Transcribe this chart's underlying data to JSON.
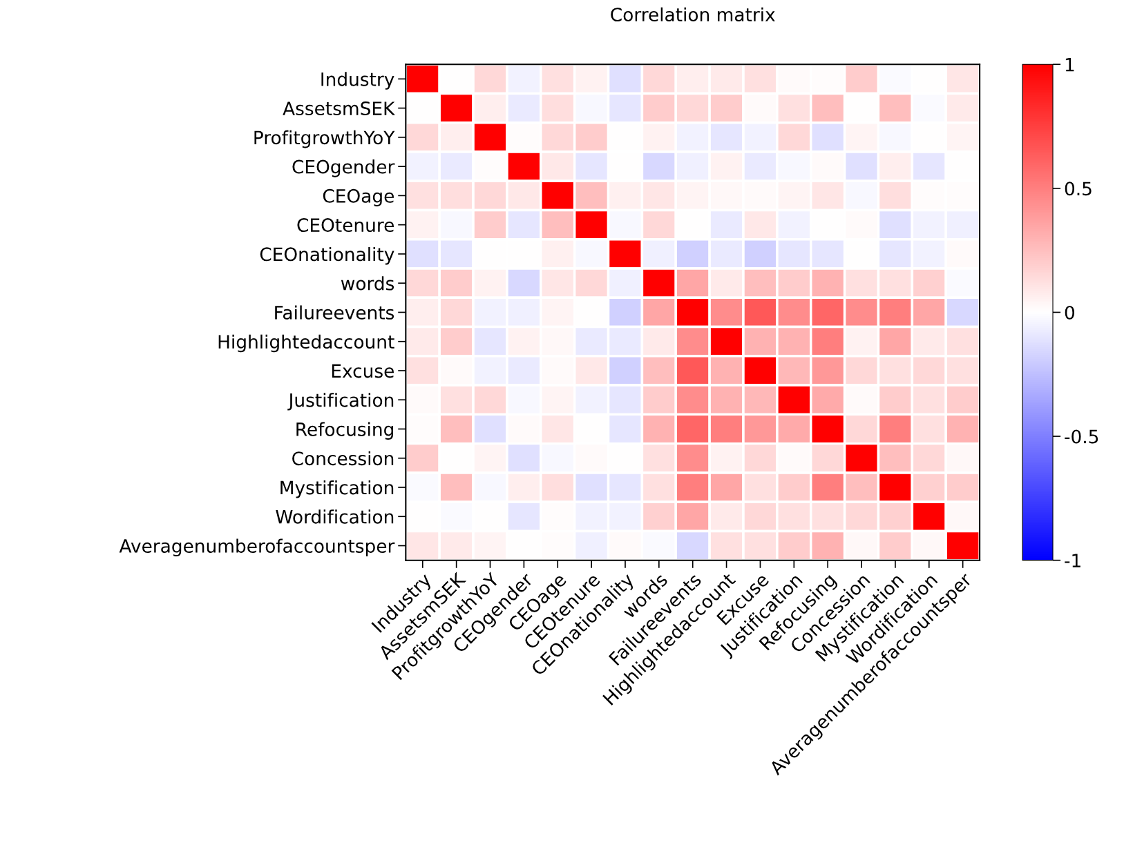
{
  "chart_data": {
    "type": "heatmap",
    "title": "Correlation matrix",
    "categories": [
      "Industry",
      "AssetsmSEK",
      "ProfitgrowthYoY",
      "CEOgender",
      "CEOage",
      "CEOtenure",
      "CEOnationality",
      "words",
      "Failureevents",
      "Highlightedaccount",
      "Excuse",
      "Justification",
      "Refocusing",
      "Concession",
      "Mystification",
      "Wordification",
      "Averagenumberofaccountsper"
    ],
    "y_categories": [
      "Industry",
      "AssetsmSEK",
      "ProfitgrowthYoY",
      "CEOgender",
      "CEOage",
      "CEOtenure",
      "CEOnationality",
      "words",
      "Failureevents",
      "Highlightedaccount",
      "Excuse",
      "Justification",
      "Refocusing",
      "Concession",
      "Mystification",
      "Wordification",
      "Averagenumberofaccountsper"
    ],
    "cells": [
      [
        1,
        0,
        0.15,
        -0.05,
        0.12,
        0.05,
        -0.12,
        0.15,
        0.07,
        0.08,
        0.12,
        0.02,
        0.01,
        0.2,
        -0.02,
        0,
        0.1
      ],
      [
        0,
        1,
        0.07,
        -0.08,
        0.13,
        -0.03,
        -0.1,
        0.2,
        0.15,
        0.2,
        0.02,
        0.12,
        0.25,
        0,
        0.25,
        -0.02,
        0.08
      ],
      [
        0.15,
        0.07,
        1,
        0.01,
        0.15,
        0.2,
        0,
        0.05,
        -0.05,
        -0.1,
        -0.05,
        0.15,
        -0.12,
        0.04,
        -0.03,
        0,
        0.04
      ],
      [
        -0.05,
        -0.08,
        0.01,
        1,
        0.09,
        -0.1,
        0,
        -0.15,
        -0.06,
        0.05,
        -0.08,
        -0.03,
        0.02,
        -0.12,
        0.07,
        -0.1,
        0
      ],
      [
        0.12,
        0.13,
        0.15,
        0.09,
        1,
        0.25,
        0.06,
        0.1,
        0.04,
        0.03,
        0.02,
        0.04,
        0.1,
        -0.03,
        0.13,
        0.01,
        0.01
      ],
      [
        0.05,
        -0.03,
        0.2,
        -0.1,
        0.25,
        1,
        -0.03,
        0.15,
        0,
        -0.08,
        0.09,
        -0.05,
        0,
        0.02,
        -0.12,
        -0.05,
        -0.06
      ],
      [
        -0.12,
        -0.1,
        0,
        0,
        0.06,
        -0.03,
        1,
        -0.06,
        -0.18,
        -0.08,
        -0.18,
        -0.1,
        -0.1,
        0,
        -0.1,
        -0.05,
        0.02
      ],
      [
        0.15,
        0.2,
        0.05,
        -0.15,
        0.1,
        0.15,
        -0.06,
        1,
        0.35,
        0.08,
        0.25,
        0.2,
        0.3,
        0.12,
        0.12,
        0.18,
        -0.02
      ],
      [
        0.07,
        0.15,
        -0.05,
        -0.06,
        0.04,
        0,
        -0.18,
        0.35,
        1,
        0.45,
        0.65,
        0.45,
        0.6,
        0.45,
        0.5,
        0.35,
        -0.15
      ],
      [
        0.08,
        0.2,
        -0.1,
        0.05,
        0.03,
        -0.08,
        -0.08,
        0.08,
        0.45,
        1,
        0.3,
        0.3,
        0.5,
        0.05,
        0.35,
        0.08,
        0.12
      ],
      [
        0.12,
        0.02,
        -0.05,
        -0.08,
        0.02,
        0.09,
        -0.18,
        0.25,
        0.65,
        0.3,
        1,
        0.28,
        0.4,
        0.15,
        0.12,
        0.15,
        0.12
      ],
      [
        0.02,
        0.12,
        0.15,
        -0.03,
        0.04,
        -0.05,
        -0.1,
        0.2,
        0.45,
        0.3,
        0.28,
        1,
        0.33,
        0.02,
        0.2,
        0.12,
        0.2
      ],
      [
        0.01,
        0.25,
        -0.12,
        0.02,
        0.1,
        0,
        -0.1,
        0.3,
        0.6,
        0.5,
        0.4,
        0.33,
        1,
        0.15,
        0.5,
        0.12,
        0.3
      ],
      [
        0.2,
        0,
        0.04,
        -0.12,
        -0.03,
        0.02,
        0,
        0.12,
        0.45,
        0.05,
        0.15,
        0.02,
        0.15,
        1,
        0.25,
        0.15,
        0.03
      ],
      [
        -0.02,
        0.25,
        -0.03,
        0.07,
        0.13,
        -0.12,
        -0.1,
        0.12,
        0.5,
        0.35,
        0.12,
        0.2,
        0.5,
        0.25,
        1,
        0.18,
        0.2
      ],
      [
        0,
        -0.02,
        0,
        -0.1,
        0.01,
        -0.05,
        -0.05,
        0.18,
        0.35,
        0.08,
        0.15,
        0.12,
        0.12,
        0.15,
        0.18,
        1,
        0.03
      ],
      [
        0.1,
        0.08,
        0.04,
        0,
        0.01,
        -0.06,
        0.02,
        -0.02,
        -0.15,
        0.12,
        0.12,
        0.2,
        0.3,
        0.03,
        0.2,
        0.03,
        1
      ]
    ],
    "clim": [
      -1,
      1
    ],
    "cticks": [
      {
        "value": -1,
        "label": "-1"
      },
      {
        "value": -0.5,
        "label": "-0.5"
      },
      0,
      0.5,
      1
    ]
  }
}
